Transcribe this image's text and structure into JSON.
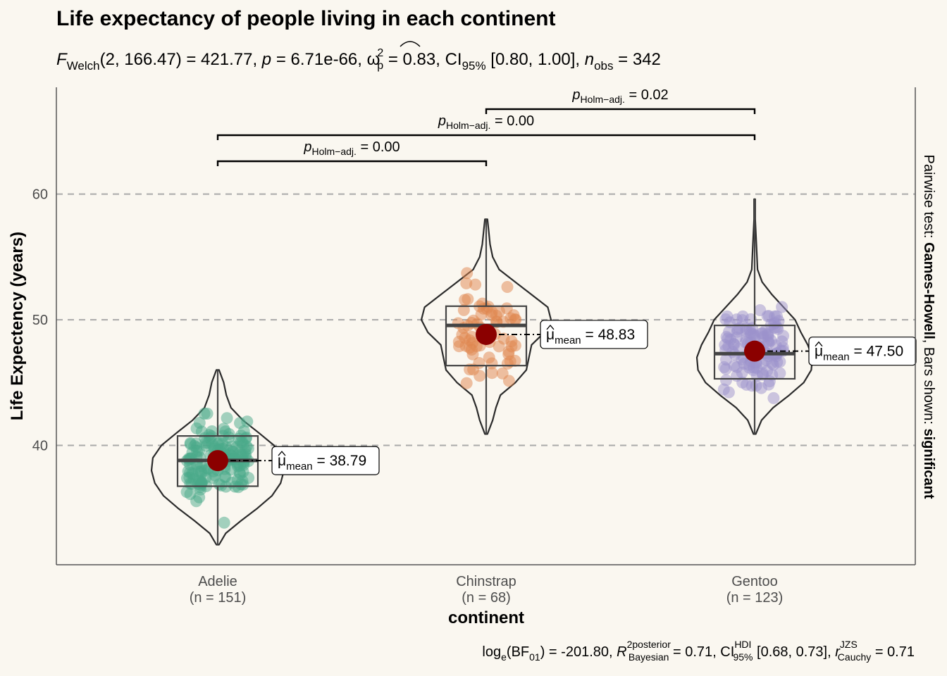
{
  "chart_data": {
    "type": "violin-box-scatter",
    "title": "Life expectancy of people living in each continent",
    "subtitle": {
      "stat_label": "Welch",
      "df": "(2, 166.47)",
      "statistic": "421.77",
      "p_value": "6.71e-66",
      "effect_size_sup": "2",
      "effect_size_sub": "p",
      "effect_size_value": "0.83",
      "ci_label": "95%",
      "ci": "[0.80, 1.00]",
      "n_sub": "obs",
      "n_obs": "342"
    },
    "xlabel": "continent",
    "ylabel": "Life Expectency (years)",
    "ylim": [
      30.5,
      68.5
    ],
    "yticks": [
      40,
      50,
      60
    ],
    "grid": "major-y-dashed",
    "categories": [
      {
        "name": "Adelie",
        "n_label": "(n = 151)",
        "mean": 38.79,
        "mean_label": "38.79",
        "median": 38.8,
        "q1": 36.75,
        "q3": 40.75,
        "min": 32.1,
        "max": 46.0,
        "color": "#4aa989"
      },
      {
        "name": "Chinstrap",
        "n_label": "(n = 68)",
        "mean": 48.83,
        "mean_label": "48.83",
        "median": 49.55,
        "q1": 46.35,
        "q3": 51.08,
        "min": 40.9,
        "max": 58.0,
        "color": "#e0864d"
      },
      {
        "name": "Gentoo",
        "n_label": "(n = 123)",
        "mean": 47.5,
        "mean_label": "47.50",
        "median": 47.3,
        "q1": 45.3,
        "q3": 49.55,
        "min": 40.9,
        "max": 59.6,
        "color": "#9c92cc"
      }
    ],
    "mean_symbol": "μ",
    "mean_sub": "mean",
    "mean_point_color": "#8b0000",
    "pairwise": [
      {
        "from": "Adelie",
        "to": "Chinstrap",
        "p_sub": "Holm−adj.",
        "p_value": "0.00"
      },
      {
        "from": "Adelie",
        "to": "Gentoo",
        "p_sub": "Holm−adj.",
        "p_value": "0.00"
      },
      {
        "from": "Chinstrap",
        "to": "Gentoo",
        "p_sub": "Holm−adj.",
        "p_value": "0.02"
      }
    ],
    "side_caption": {
      "prefix": "Pairwise test: ",
      "test": "Games-Howell",
      "middle": ", Bars shown: ",
      "shown": "significant"
    },
    "caption": {
      "log_base": "e",
      "bf_sub": "01",
      "bf_value": "-201.80",
      "r2_sup": "2",
      "r2_sup2": "posterior",
      "r2_sub": "Bayesian",
      "r2_value": "0.71",
      "ci_sup": "HDI",
      "ci_sub": "95%",
      "ci": "[0.68, 0.73]",
      "r_sup": "JZS",
      "r_sub": "Cauchy",
      "r_value": "0.71"
    }
  }
}
